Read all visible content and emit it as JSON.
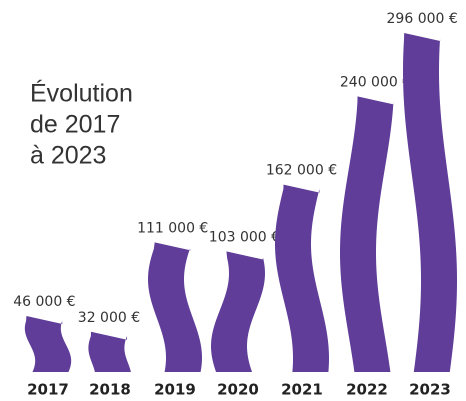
{
  "chart_data": {
    "type": "bar",
    "title": [
      "Évolution",
      "de 2017",
      "à 2023"
    ],
    "categories": [
      "2017",
      "2018",
      "2019",
      "2020",
      "2021",
      "2022",
      "2023"
    ],
    "values": [
      46000,
      32000,
      111000,
      103000,
      162000,
      240000,
      296000
    ],
    "value_labels": [
      "46 000 €",
      "32 000 €",
      "111 000 €",
      "103 000 €",
      "162 000 €",
      "240 000 €",
      "296 000 €"
    ],
    "color": "#5f3d99"
  }
}
